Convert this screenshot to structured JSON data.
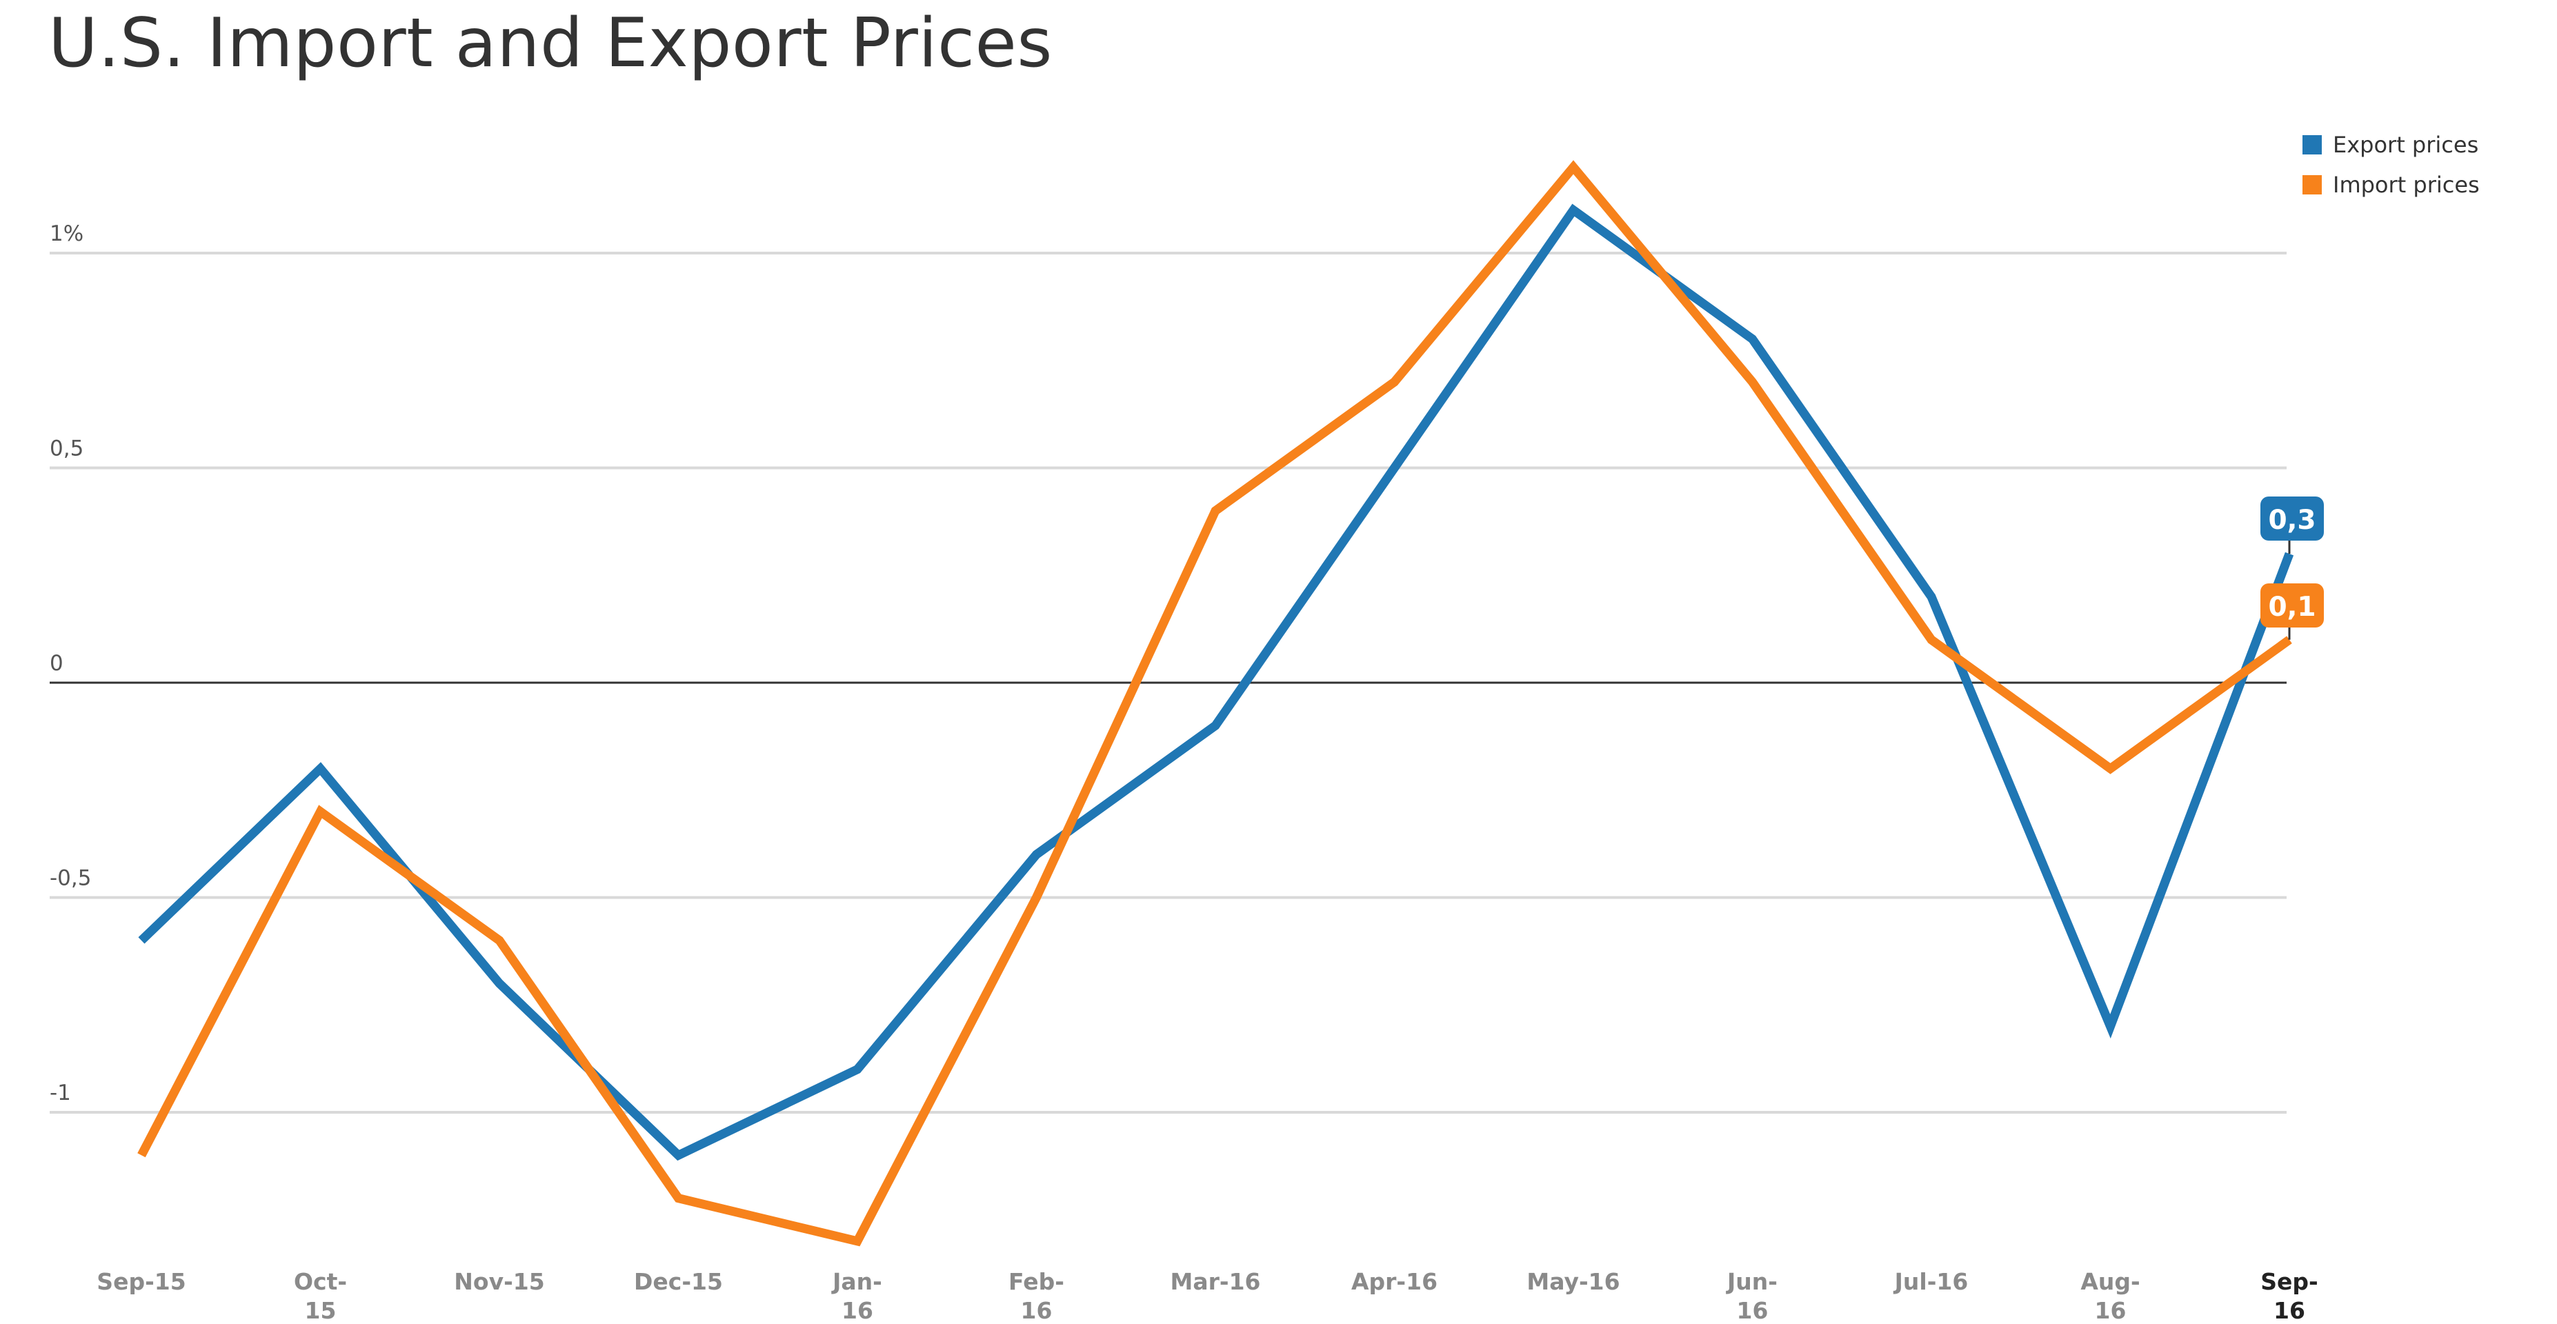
{
  "chart_data": {
    "type": "line",
    "title": "U.S. Import and Export Prices",
    "xlabel": "",
    "ylabel": "",
    "categories": [
      [
        "Sep-15"
      ],
      [
        "Oct-",
        "15"
      ],
      [
        "Nov-15"
      ],
      [
        "Dec-15"
      ],
      [
        "Jan-",
        "16"
      ],
      [
        "Feb-",
        "16"
      ],
      [
        "Mar-16"
      ],
      [
        "Apr-16"
      ],
      [
        "May-16"
      ],
      [
        "Jun-",
        "16"
      ],
      [
        "Jul-16"
      ],
      [
        "Aug-",
        "16"
      ],
      [
        "Sep-",
        "16"
      ]
    ],
    "y_ticks": [
      {
        "value": 1,
        "label": "1%"
      },
      {
        "value": 0.5,
        "label": "0,5"
      },
      {
        "value": 0,
        "label": "0"
      },
      {
        "value": -0.5,
        "label": "-0,5"
      },
      {
        "value": -1,
        "label": "-1"
      }
    ],
    "ylim": [
      -1.3,
      1.2
    ],
    "grid": true,
    "legend_position": "top-right",
    "series": [
      {
        "name": "Export prices",
        "color": "#2077b4",
        "values": [
          -0.6,
          -0.2,
          -0.7,
          -1.1,
          -0.9,
          -0.4,
          -0.1,
          0.5,
          1.1,
          0.8,
          0.2,
          -0.8,
          0.3
        ],
        "end_label": "0,3"
      },
      {
        "name": "Import prices",
        "color": "#f7821b",
        "values": [
          -1.1,
          -0.3,
          -0.6,
          -1.2,
          -1.3,
          -0.5,
          0.4,
          0.7,
          1.2,
          0.7,
          0.1,
          -0.2,
          0.1
        ],
        "end_label": "0,1"
      }
    ]
  }
}
